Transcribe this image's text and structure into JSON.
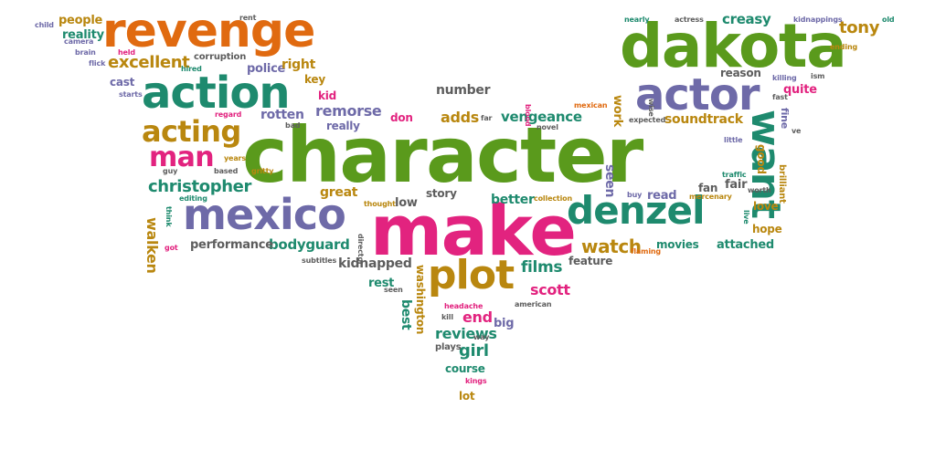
{
  "palette": {
    "green": "#5a9a1c",
    "purple": "#6e6aa8",
    "pink": "#e2237f",
    "orange": "#e06a10",
    "teal": "#1e8a6e",
    "gold": "#b9870f",
    "gray": "#5d5d5d"
  },
  "words": [
    {
      "text": "character",
      "color": "green"
    },
    {
      "text": "make",
      "color": "pink"
    },
    {
      "text": "dakota",
      "color": "green"
    },
    {
      "text": "revenge",
      "color": "orange"
    },
    {
      "text": "action",
      "color": "teal"
    },
    {
      "text": "actor",
      "color": "purple"
    },
    {
      "text": "mexico",
      "color": "purple"
    },
    {
      "text": "denzel",
      "color": "teal"
    },
    {
      "text": "plot",
      "color": "gold"
    },
    {
      "text": "want",
      "color": "teal"
    },
    {
      "text": "acting",
      "color": "gold"
    },
    {
      "text": "man",
      "color": "pink"
    },
    {
      "text": "christopher",
      "color": "teal"
    },
    {
      "text": "excellent",
      "color": "gold"
    },
    {
      "text": "tony",
      "color": "gold"
    },
    {
      "text": "creasy",
      "color": "teal"
    },
    {
      "text": "watch",
      "color": "gold"
    },
    {
      "text": "bodyguard",
      "color": "teal"
    },
    {
      "text": "films",
      "color": "teal"
    },
    {
      "text": "scott",
      "color": "pink"
    },
    {
      "text": "reviews",
      "color": "teal"
    },
    {
      "text": "girl",
      "color": "teal"
    },
    {
      "text": "end",
      "color": "pink"
    },
    {
      "text": "kidnapped",
      "color": "gray"
    },
    {
      "text": "remorse",
      "color": "purple"
    },
    {
      "text": "vengeance",
      "color": "teal"
    },
    {
      "text": "adds",
      "color": "gold"
    },
    {
      "text": "soundtrack",
      "color": "gold"
    },
    {
      "text": "number",
      "color": "gray"
    },
    {
      "text": "walken",
      "color": "gold"
    },
    {
      "text": "performance",
      "color": "gray"
    },
    {
      "text": "better",
      "color": "teal"
    },
    {
      "text": "low",
      "color": "gray"
    },
    {
      "text": "story",
      "color": "gray"
    },
    {
      "text": "great",
      "color": "gold"
    },
    {
      "text": "rotten",
      "color": "purple"
    },
    {
      "text": "police",
      "color": "purple"
    },
    {
      "text": "right",
      "color": "gold"
    },
    {
      "text": "key",
      "color": "gold"
    },
    {
      "text": "people",
      "color": "gold"
    },
    {
      "text": "reality",
      "color": "teal"
    },
    {
      "text": "cast",
      "color": "purple"
    },
    {
      "text": "kid",
      "color": "pink"
    },
    {
      "text": "really",
      "color": "purple"
    },
    {
      "text": "don",
      "color": "pink"
    },
    {
      "text": "seen",
      "color": "purple"
    },
    {
      "text": "work",
      "color": "gold"
    },
    {
      "text": "fan",
      "color": "gray"
    },
    {
      "text": "fair",
      "color": "gray"
    },
    {
      "text": "read",
      "color": "purple"
    },
    {
      "text": "love",
      "color": "gold"
    },
    {
      "text": "hope",
      "color": "gold"
    },
    {
      "text": "movies",
      "color": "teal"
    },
    {
      "text": "attached",
      "color": "teal"
    },
    {
      "text": "feature",
      "color": "gray"
    },
    {
      "text": "rest",
      "color": "teal"
    },
    {
      "text": "best",
      "color": "teal"
    },
    {
      "text": "washington",
      "color": "gold"
    },
    {
      "text": "big",
      "color": "purple"
    },
    {
      "text": "course",
      "color": "teal"
    },
    {
      "text": "lot",
      "color": "gold"
    },
    {
      "text": "plays",
      "color": "gray"
    },
    {
      "text": "quite",
      "color": "pink"
    },
    {
      "text": "fine",
      "color": "purple"
    },
    {
      "text": "good",
      "color": "gold"
    },
    {
      "text": "reason",
      "color": "gray"
    },
    {
      "text": "corruption",
      "color": "gray"
    },
    {
      "text": "brilliant",
      "color": "gold"
    },
    {
      "text": "nearly",
      "color": "teal"
    },
    {
      "text": "actress",
      "color": "gray"
    },
    {
      "text": "kidnappings",
      "color": "purple"
    },
    {
      "text": "old",
      "color": "teal"
    },
    {
      "text": "ending",
      "color": "gold"
    },
    {
      "text": "killing",
      "color": "purple"
    },
    {
      "text": "ism",
      "color": "gray"
    },
    {
      "text": "fast",
      "color": "gray"
    },
    {
      "text": "ve",
      "color": "gray"
    },
    {
      "text": "little",
      "color": "purple"
    },
    {
      "text": "traffic",
      "color": "teal"
    },
    {
      "text": "worth",
      "color": "gray"
    },
    {
      "text": "live",
      "color": "teal"
    },
    {
      "text": "mercenary",
      "color": "gold"
    },
    {
      "text": "buy",
      "color": "purple"
    },
    {
      "text": "expected",
      "color": "gray"
    },
    {
      "text": "wise",
      "color": "gray"
    },
    {
      "text": "mexican",
      "color": "orange"
    },
    {
      "text": "novel",
      "color": "gray"
    },
    {
      "text": "far",
      "color": "gray"
    },
    {
      "text": "blood",
      "color": "pink"
    },
    {
      "text": "collection",
      "color": "gold"
    },
    {
      "text": "thought",
      "color": "gold"
    },
    {
      "text": "director",
      "color": "gray"
    },
    {
      "text": "subtitles",
      "color": "gray"
    },
    {
      "text": "headache",
      "color": "pink"
    },
    {
      "text": "american",
      "color": "gray"
    },
    {
      "text": "kill",
      "color": "gray"
    },
    {
      "text": "way",
      "color": "gray"
    },
    {
      "text": "kings",
      "color": "pink"
    },
    {
      "text": "flick",
      "color": "purple"
    },
    {
      "text": "brain",
      "color": "purple"
    },
    {
      "text": "held",
      "color": "pink"
    },
    {
      "text": "camera",
      "color": "purple"
    },
    {
      "text": "child",
      "color": "purple"
    },
    {
      "text": "rent",
      "color": "gray"
    },
    {
      "text": "hired",
      "color": "teal"
    },
    {
      "text": "starts",
      "color": "purple"
    },
    {
      "text": "regard",
      "color": "pink"
    },
    {
      "text": "bad",
      "color": "gray"
    },
    {
      "text": "gritty",
      "color": "gold"
    },
    {
      "text": "years",
      "color": "gold"
    },
    {
      "text": "based",
      "color": "gray"
    },
    {
      "text": "guy",
      "color": "gray"
    },
    {
      "text": "editing",
      "color": "teal"
    },
    {
      "text": "think",
      "color": "teal"
    },
    {
      "text": "got",
      "color": "pink"
    },
    {
      "text": "flaming",
      "color": "orange"
    },
    {
      "text": "seen",
      "color": "gray"
    }
  ]
}
